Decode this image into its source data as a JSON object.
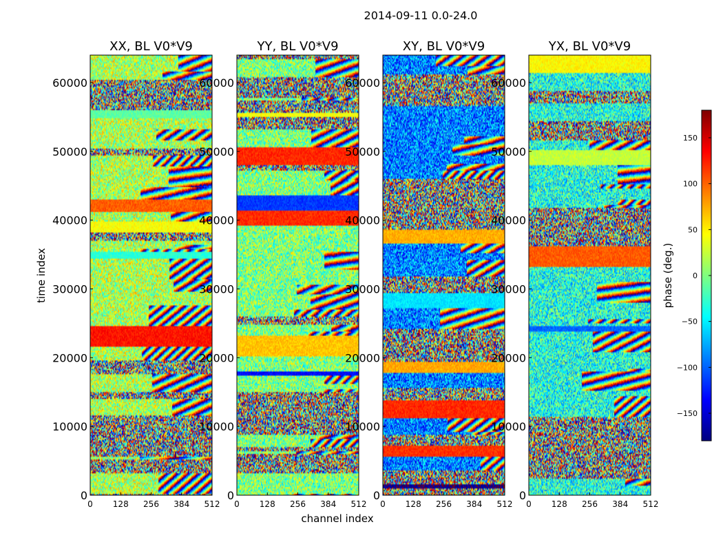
{
  "suptitle": "2014-09-11 0.0-24.0",
  "xlabel": "channel index",
  "ylabel": "time index",
  "colorbar": {
    "label": "phase (deg.)",
    "range": [
      -180,
      180
    ],
    "ticks": [
      "150",
      "100",
      "50",
      "0",
      "−50",
      "−100",
      "−150"
    ],
    "tick_values": [
      150,
      100,
      50,
      0,
      -50,
      -100,
      -150
    ],
    "colormap": "jet",
    "colors": [
      "#00007f",
      "#0000ff",
      "#007fff",
      "#00ffff",
      "#7fff7f",
      "#ffff00",
      "#ff7f00",
      "#ff0000",
      "#7f0000"
    ]
  },
  "chart_data": [
    {
      "type": "heatmap",
      "title": "XX, BL V0*V9",
      "xlim": [
        0,
        512
      ],
      "ylim": [
        0,
        64000
      ],
      "xticks": [
        "0",
        "128",
        "256",
        "384",
        "512"
      ],
      "xtick_values": [
        0,
        128,
        256,
        384,
        512
      ],
      "yticks": [
        "0",
        "10000",
        "20000",
        "30000",
        "40000",
        "50000",
        "60000"
      ],
      "ytick_values": [
        0,
        10000,
        20000,
        30000,
        40000,
        50000,
        60000
      ],
      "z": "phase (deg.)",
      "bias": 0.55
    },
    {
      "type": "heatmap",
      "title": "YY, BL V0*V9",
      "xlim": [
        0,
        512
      ],
      "ylim": [
        0,
        64000
      ],
      "xticks": [
        "0",
        "128",
        "256",
        "384",
        "512"
      ],
      "xtick_values": [
        0,
        128,
        256,
        384,
        512
      ],
      "yticks": [
        "0",
        "10000",
        "20000",
        "30000",
        "40000",
        "50000",
        "60000"
      ],
      "ytick_values": [
        0,
        10000,
        20000,
        30000,
        40000,
        50000,
        60000
      ],
      "z": "phase (deg.)",
      "bias": 0.5
    },
    {
      "type": "heatmap",
      "title": "XY, BL V0*V9",
      "xlim": [
        0,
        512
      ],
      "ylim": [
        0,
        64000
      ],
      "xticks": [
        "0",
        "128",
        "256",
        "384",
        "512"
      ],
      "xtick_values": [
        0,
        128,
        256,
        384,
        512
      ],
      "yticks": [
        "0",
        "10000",
        "20000",
        "30000",
        "40000",
        "50000",
        "60000"
      ],
      "ytick_values": [
        0,
        10000,
        20000,
        30000,
        40000,
        50000,
        60000
      ],
      "z": "phase (deg.)",
      "bias": 0.25
    },
    {
      "type": "heatmap",
      "title": "YX, BL V0*V9",
      "xlim": [
        0,
        512
      ],
      "ylim": [
        0,
        64000
      ],
      "xticks": [
        "0",
        "128",
        "256",
        "384",
        "512"
      ],
      "xtick_values": [
        0,
        128,
        256,
        384,
        512
      ],
      "yticks": [
        "0",
        "10000",
        "20000",
        "30000",
        "40000",
        "50000",
        "60000"
      ],
      "ytick_values": [
        0,
        10000,
        20000,
        30000,
        40000,
        50000,
        60000
      ],
      "z": "phase (deg.)",
      "bias": 0.4
    }
  ]
}
